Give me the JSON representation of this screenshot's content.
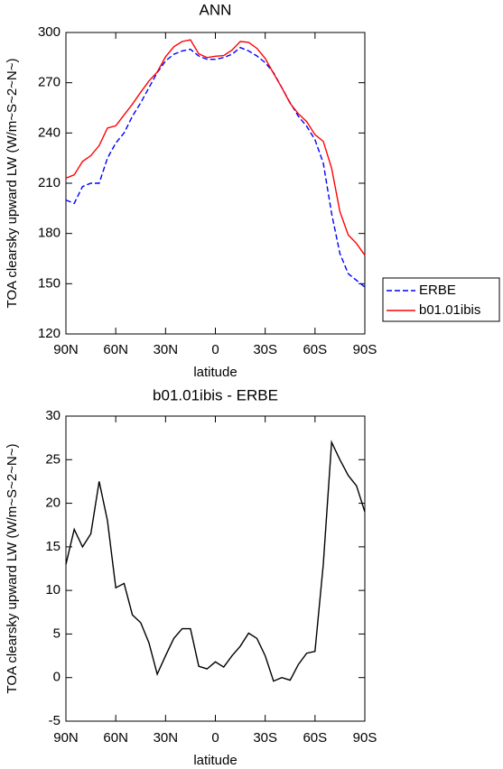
{
  "chart_data": [
    {
      "type": "line",
      "title": "ANN",
      "xlabel": "latitude",
      "ylabel": "TOA clearsky upward LW (W/m~S~2~N~)",
      "x": [
        90,
        85,
        80,
        75,
        70,
        65,
        60,
        55,
        50,
        45,
        40,
        35,
        30,
        25,
        20,
        15,
        10,
        5,
        0,
        -5,
        -10,
        -15,
        -20,
        -25,
        -30,
        -35,
        -40,
        -45,
        -50,
        -55,
        -60,
        -65,
        -70,
        -75,
        -80,
        -85,
        -90
      ],
      "xlim": [
        90,
        -90
      ],
      "xticks": [
        {
          "value": 90,
          "label": "90N"
        },
        {
          "value": 60,
          "label": "60N"
        },
        {
          "value": 30,
          "label": "30N"
        },
        0,
        {
          "value": -30,
          "label": "30S"
        },
        {
          "value": -60,
          "label": "60S"
        },
        {
          "value": -90,
          "label": "90S"
        }
      ],
      "ylim": [
        120,
        300
      ],
      "yticks": [
        120,
        150,
        180,
        210,
        240,
        270,
        300
      ],
      "legend": "right",
      "series": [
        {
          "name": "ERBE",
          "color": "#0000ff",
          "style": "dashed",
          "values": [
            200,
            198,
            208,
            210,
            210,
            225,
            234,
            240,
            250,
            258,
            267,
            276,
            283,
            287,
            289,
            290,
            286,
            284,
            284,
            285,
            287,
            291,
            289,
            286,
            282,
            276,
            267,
            258,
            250,
            244,
            236,
            222,
            192,
            168,
            156,
            152,
            148
          ]
        },
        {
          "name": "b01.01ibis",
          "color": "#ff0000",
          "style": "solid",
          "values": [
            213,
            215,
            223,
            226.5,
            232.5,
            243,
            244.3,
            250.8,
            257.2,
            264.3,
            271,
            276.4,
            285.5,
            291.5,
            294.6,
            295.6,
            287.3,
            285,
            285.8,
            286.2,
            289.5,
            294.6,
            294.1,
            290.5,
            284.5,
            275.6,
            267,
            257.7,
            251.5,
            246.8,
            239,
            235,
            219,
            193,
            179.2,
            174,
            167
          ]
        }
      ]
    },
    {
      "type": "line",
      "title": "b01.01ibis - ERBE",
      "xlabel": "latitude",
      "ylabel": "TOA clearsky upward LW (W/m~S~2~N~)",
      "x": [
        90,
        85,
        80,
        75,
        70,
        65,
        60,
        55,
        50,
        45,
        40,
        35,
        30,
        25,
        20,
        15,
        10,
        5,
        0,
        -5,
        -10,
        -15,
        -20,
        -25,
        -30,
        -35,
        -40,
        -45,
        -50,
        -55,
        -60,
        -65,
        -70,
        -75,
        -80,
        -85,
        -90
      ],
      "xlim": [
        90,
        -90
      ],
      "xticks": [
        {
          "value": 90,
          "label": "90N"
        },
        {
          "value": 60,
          "label": "60N"
        },
        {
          "value": 30,
          "label": "30N"
        },
        0,
        {
          "value": -30,
          "label": "30S"
        },
        {
          "value": -60,
          "label": "60S"
        },
        {
          "value": -90,
          "label": "90S"
        }
      ],
      "ylim": [
        -5,
        30
      ],
      "yticks": [
        -5,
        0,
        5,
        10,
        15,
        20,
        25,
        30
      ],
      "series": [
        {
          "color": "#000000",
          "style": "solid",
          "values": [
            13,
            17,
            15,
            16.5,
            22.5,
            18,
            10.3,
            10.8,
            7.2,
            6.3,
            4,
            0.4,
            2.5,
            4.5,
            5.6,
            5.6,
            1.3,
            1,
            1.8,
            1.2,
            2.5,
            3.6,
            5.1,
            4.5,
            2.5,
            -0.4,
            0,
            -0.3,
            1.5,
            2.8,
            3,
            13,
            27,
            25,
            23.2,
            22,
            19
          ]
        }
      ]
    }
  ]
}
